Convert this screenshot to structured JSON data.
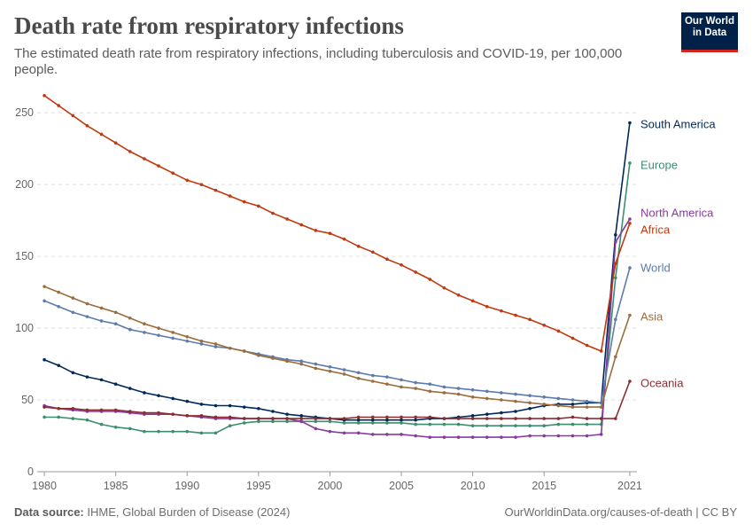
{
  "header": {
    "title": "Death rate from respiratory infections",
    "subtitle": "The estimated death rate from respiratory infections, including tuberculosis and COVID-19, per 100,000 people.",
    "logo_line1": "Our World",
    "logo_line2": "in Data"
  },
  "footer": {
    "source_label": "Data source:",
    "source_text": "IHME, Global Burden of Disease (2024)",
    "url": "OurWorldinData.org/causes-of-death | CC BY"
  },
  "chart_data": {
    "type": "line",
    "title": "Death rate from respiratory infections",
    "xlim": [
      1979.5,
      2021.5
    ],
    "ylim": [
      0,
      260
    ],
    "x_ticks": [
      1980,
      1985,
      1990,
      1995,
      2000,
      2005,
      2010,
      2015,
      2021
    ],
    "y_ticks": [
      0,
      50,
      100,
      150,
      200,
      250
    ],
    "grid": "horizontal dashed",
    "legend": "right (inline series labels)",
    "x": [
      1980,
      1981,
      1982,
      1983,
      1984,
      1985,
      1986,
      1987,
      1988,
      1989,
      1990,
      1991,
      1992,
      1993,
      1994,
      1995,
      1996,
      1997,
      1998,
      1999,
      2000,
      2001,
      2002,
      2003,
      2004,
      2005,
      2006,
      2007,
      2008,
      2009,
      2010,
      2011,
      2012,
      2013,
      2014,
      2015,
      2016,
      2017,
      2018,
      2019,
      2020,
      2021
    ],
    "series": [
      {
        "name": "South America",
        "color": "#00295b",
        "values": [
          78,
          74,
          69,
          66,
          64,
          61,
          58,
          55,
          53,
          51,
          49,
          47,
          46,
          46,
          45,
          44,
          42,
          40,
          39,
          38,
          37,
          36,
          36,
          36,
          36,
          36,
          36,
          37,
          37,
          38,
          39,
          40,
          41,
          42,
          44,
          46,
          47,
          47,
          48,
          48,
          165,
          243
        ]
      },
      {
        "name": "Europe",
        "color": "#3b8e6f",
        "values": [
          38,
          38,
          37,
          36,
          33,
          31,
          30,
          28,
          28,
          28,
          28,
          27,
          27,
          32,
          34,
          35,
          35,
          35,
          35,
          35,
          35,
          34,
          34,
          34,
          34,
          34,
          33,
          33,
          33,
          33,
          32,
          32,
          32,
          32,
          32,
          32,
          33,
          33,
          33,
          33,
          135,
          215
        ]
      },
      {
        "name": "North America",
        "color": "#883a9f",
        "values": [
          46,
          44,
          43,
          42,
          42,
          42,
          41,
          40,
          40,
          40,
          39,
          38,
          37,
          37,
          37,
          37,
          37,
          37,
          35,
          30,
          28,
          27,
          27,
          26,
          26,
          26,
          25,
          24,
          24,
          24,
          24,
          24,
          24,
          24,
          25,
          25,
          25,
          25,
          25,
          26,
          160,
          176
        ]
      },
      {
        "name": "Africa",
        "color": "#c0390f",
        "values": [
          262,
          255,
          248,
          241,
          235,
          229,
          223,
          218,
          213,
          208,
          203,
          200,
          196,
          192,
          188,
          185,
          180,
          176,
          172,
          168,
          166,
          162,
          157,
          153,
          148,
          144,
          139,
          134,
          128,
          123,
          119,
          115,
          112,
          109,
          106,
          102,
          98,
          93,
          88,
          84,
          145,
          173
        ]
      },
      {
        "name": "World",
        "color": "#5d7bab",
        "values": [
          119,
          115,
          111,
          108,
          105,
          103,
          99,
          97,
          95,
          93,
          91,
          89,
          87,
          86,
          84,
          82,
          80,
          78,
          77,
          75,
          73,
          71,
          69,
          67,
          66,
          64,
          62,
          61,
          59,
          58,
          57,
          56,
          55,
          54,
          53,
          52,
          51,
          50,
          49,
          48,
          106,
          142
        ]
      },
      {
        "name": "Asia",
        "color": "#9b6d3c",
        "values": [
          129,
          125,
          121,
          117,
          114,
          111,
          107,
          103,
          100,
          97,
          94,
          91,
          89,
          86,
          84,
          81,
          79,
          77,
          75,
          72,
          70,
          68,
          65,
          63,
          61,
          59,
          58,
          56,
          55,
          54,
          52,
          51,
          50,
          49,
          48,
          47,
          46,
          45,
          45,
          45,
          80,
          109
        ]
      },
      {
        "name": "Oceania",
        "color": "#8d2c30",
        "values": [
          45,
          44,
          44,
          43,
          43,
          43,
          42,
          41,
          41,
          40,
          39,
          39,
          38,
          38,
          37,
          37,
          37,
          37,
          37,
          37,
          37,
          37,
          38,
          38,
          38,
          38,
          38,
          38,
          37,
          37,
          37,
          37,
          37,
          37,
          37,
          37,
          37,
          38,
          37,
          37,
          37,
          63
        ]
      }
    ]
  }
}
